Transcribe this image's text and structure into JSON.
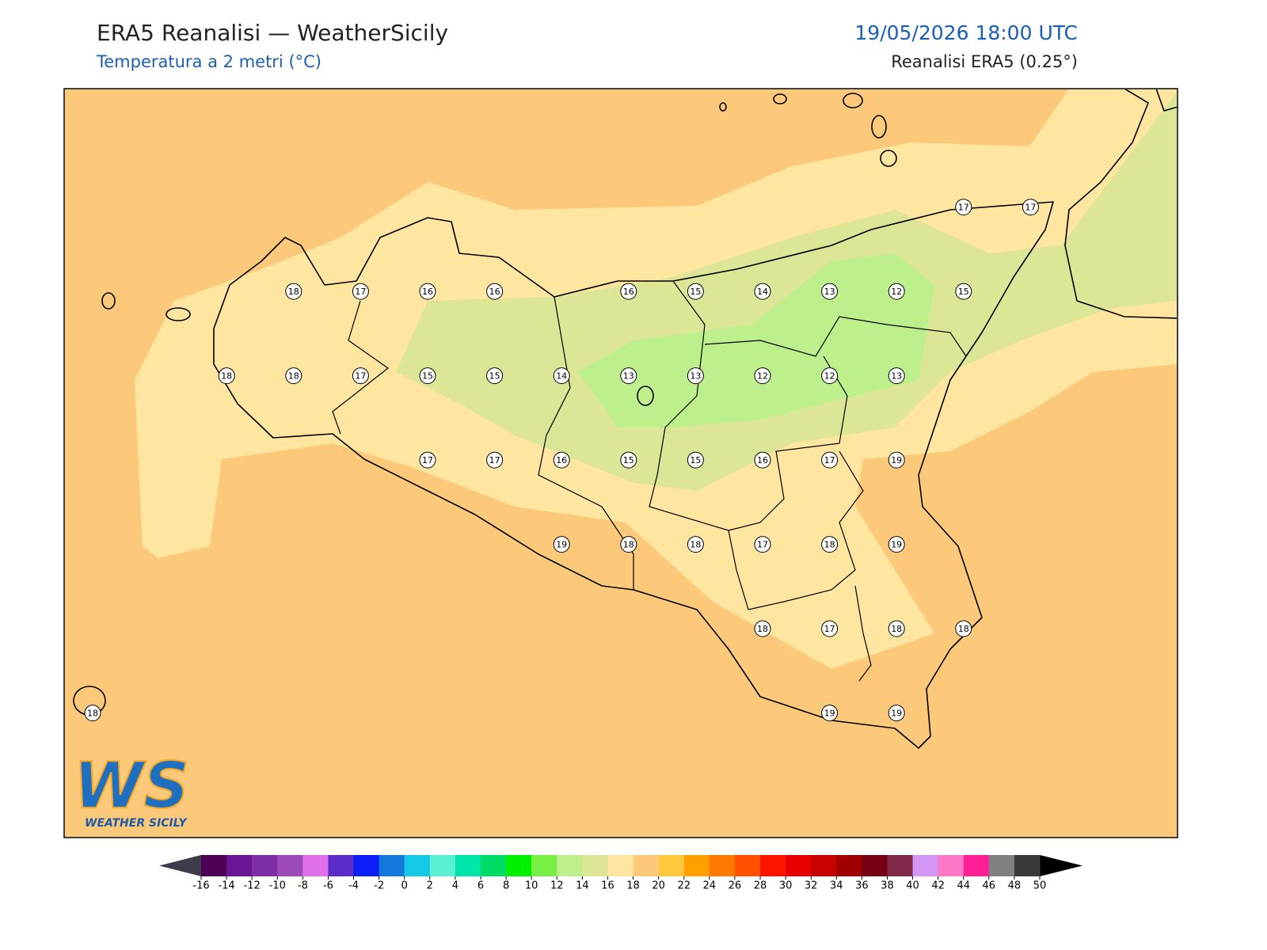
{
  "header": {
    "title": "ERA5 Reanalisi — WeatherSicily",
    "subtitle": "Temperatura a 2 metri (°C)",
    "datetime": "19/05/2026 18:00 UTC",
    "source": "Reanalisi ERA5 (0.25°)"
  },
  "stations": {
    "rows": [
      [
        null,
        null,
        null,
        null,
        null,
        null,
        null,
        null,
        null,
        null,
        null,
        null,
        null,
        17,
        17
      ],
      [
        null,
        null,
        null,
        18,
        17,
        16,
        16,
        null,
        16,
        15,
        14,
        13,
        12,
        15,
        null
      ],
      [
        null,
        null,
        18,
        18,
        17,
        15,
        15,
        14,
        13,
        13,
        12,
        12,
        13,
        null,
        null
      ],
      [
        null,
        null,
        null,
        null,
        null,
        17,
        17,
        16,
        15,
        15,
        16,
        17,
        19,
        null,
        null
      ],
      [
        null,
        null,
        null,
        null,
        null,
        null,
        null,
        19,
        18,
        18,
        17,
        18,
        19,
        null,
        null
      ],
      [
        null,
        null,
        null,
        null,
        null,
        null,
        null,
        null,
        null,
        null,
        18,
        17,
        18,
        18,
        null
      ],
      [
        18,
        null,
        null,
        null,
        null,
        null,
        null,
        null,
        null,
        null,
        null,
        19,
        19,
        null,
        null
      ]
    ]
  },
  "colorbar": {
    "ticks": [
      -16,
      -14,
      -12,
      -10,
      -8,
      -6,
      -4,
      -2,
      0,
      2,
      4,
      6,
      8,
      10,
      12,
      14,
      16,
      18,
      20,
      22,
      24,
      26,
      28,
      30,
      32,
      34,
      36,
      38,
      40,
      42,
      44,
      46,
      48,
      50
    ],
    "colors": [
      "#4b0055",
      "#6a1496",
      "#7e2fa6",
      "#9c4ab8",
      "#e070e8",
      "#5b2cc8",
      "#0a1ef5",
      "#1478dc",
      "#14c8e6",
      "#5af0d2",
      "#00e6aa",
      "#00dc64",
      "#00f000",
      "#78f046",
      "#bdf08c",
      "#dce696",
      "#ffe6a0",
      "#fcc97a",
      "#ffc83c",
      "#ffa000",
      "#ff7800",
      "#ff5000",
      "#ff1400",
      "#e60000",
      "#c80000",
      "#a00000",
      "#780014",
      "#82284b",
      "#d296f5",
      "#ff78c8",
      "#ff1e96",
      "#808080",
      "#3a3a3a"
    ],
    "extend_low_color": "#3c3c4c",
    "extend_high_color": "#000000"
  },
  "logo": {
    "mark": "WS",
    "text": "WEATHER SICILY"
  }
}
